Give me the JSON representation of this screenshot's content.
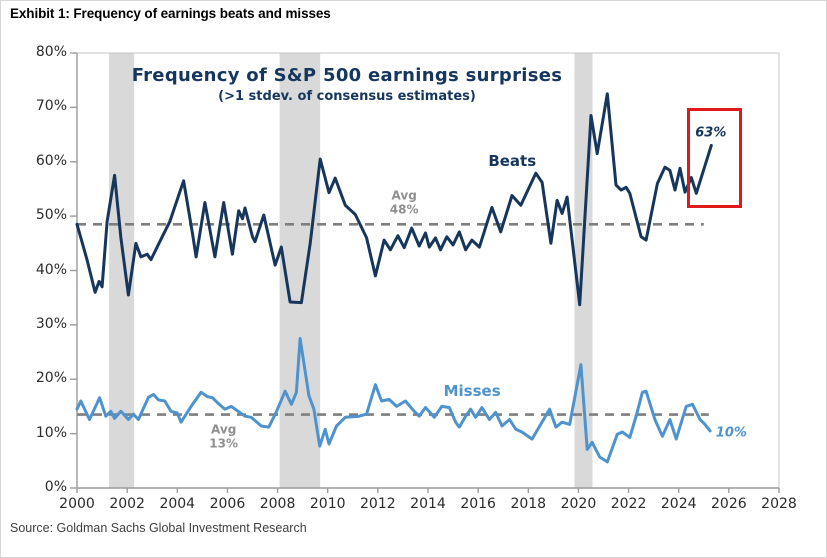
{
  "exhibit_title": "Exhibit 1: Frequency of earnings beats and misses",
  "source": "Source: Goldman Sachs Global Investment Research",
  "colors": {
    "beats": "#16365c",
    "misses": "#4f93ce",
    "recession_band": "#d9d9d9",
    "avg_dash": "#7f7f7f",
    "avg_label": "#8f8f8f",
    "axis": "#9b9b9b",
    "tick_text": "#2b2b2b",
    "highlight_red": "#e01a1a"
  },
  "chart_data": {
    "type": "line",
    "title": "Frequency of S&P 500 earnings surprises",
    "subtitle": "(>1 stdev. of consensus estimates)",
    "xlabel": "",
    "ylabel": "",
    "xlim": [
      2000,
      2028
    ],
    "ylim": [
      0,
      80
    ],
    "grid": false,
    "legend_position": "inline-labels",
    "x_ticks": [
      2000,
      2002,
      2004,
      2006,
      2008,
      2010,
      2012,
      2014,
      2016,
      2018,
      2020,
      2022,
      2024,
      2026,
      2028
    ],
    "y_tick_labels": [
      "0%",
      "10%",
      "20%",
      "30%",
      "40%",
      "50%",
      "60%",
      "70%",
      "80%"
    ],
    "y_tick_values": [
      0,
      10,
      20,
      30,
      40,
      50,
      60,
      70,
      80
    ],
    "recession_bands": [
      {
        "from": 2001.28,
        "to": 2002.28
      },
      {
        "from": 2008.08,
        "to": 2009.7
      },
      {
        "from": 2019.84,
        "to": 2020.56
      }
    ],
    "avg_lines": [
      {
        "name": "beats-average",
        "value": 48.5,
        "x_start": 2000,
        "x_end": 2025.0
      },
      {
        "name": "misses-average",
        "value": 13.5,
        "x_start": 2000,
        "x_end": 2025.2
      }
    ],
    "series": [
      {
        "name": "Beats",
        "color": "#16365c",
        "points": [
          [
            2000.0,
            48.5
          ],
          [
            2000.4,
            42
          ],
          [
            2000.72,
            36
          ],
          [
            2000.88,
            38
          ],
          [
            2001.0,
            37
          ],
          [
            2001.2,
            49
          ],
          [
            2001.5,
            57.5
          ],
          [
            2001.75,
            46
          ],
          [
            2002.05,
            35.5
          ],
          [
            2002.35,
            45
          ],
          [
            2002.55,
            42.5
          ],
          [
            2002.8,
            43
          ],
          [
            2002.95,
            42
          ],
          [
            2003.4,
            46.2
          ],
          [
            2003.7,
            49
          ],
          [
            2004.25,
            56.5
          ],
          [
            2004.6,
            47
          ],
          [
            2004.75,
            42.5
          ],
          [
            2005.1,
            52.5
          ],
          [
            2005.5,
            42.5
          ],
          [
            2005.85,
            52.5
          ],
          [
            2006.2,
            43
          ],
          [
            2006.45,
            51
          ],
          [
            2006.6,
            49.5
          ],
          [
            2006.7,
            51.5
          ],
          [
            2007.0,
            46.2
          ],
          [
            2007.1,
            45.3
          ],
          [
            2007.45,
            50.2
          ],
          [
            2007.9,
            41
          ],
          [
            2008.15,
            44.3
          ],
          [
            2008.5,
            34.2
          ],
          [
            2008.95,
            34.1
          ],
          [
            2009.3,
            45
          ],
          [
            2009.7,
            60.5
          ],
          [
            2010.05,
            54.3
          ],
          [
            2010.3,
            57
          ],
          [
            2010.7,
            52
          ],
          [
            2011.1,
            50.3
          ],
          [
            2011.55,
            46
          ],
          [
            2011.9,
            39
          ],
          [
            2012.25,
            45.6
          ],
          [
            2012.5,
            43.8
          ],
          [
            2012.8,
            46.4
          ],
          [
            2013.05,
            44.2
          ],
          [
            2013.35,
            47.8
          ],
          [
            2013.65,
            44.5
          ],
          [
            2013.9,
            46.9
          ],
          [
            2014.05,
            44.3
          ],
          [
            2014.3,
            46
          ],
          [
            2014.5,
            43.8
          ],
          [
            2014.75,
            46.2
          ],
          [
            2015.0,
            44.7
          ],
          [
            2015.25,
            47.1
          ],
          [
            2015.5,
            43.8
          ],
          [
            2015.75,
            45.6
          ],
          [
            2016.05,
            44.3
          ],
          [
            2016.55,
            51.6
          ],
          [
            2016.9,
            47.1
          ],
          [
            2017.35,
            53.8
          ],
          [
            2017.7,
            52
          ],
          [
            2018.3,
            57.9
          ],
          [
            2018.55,
            56.2
          ],
          [
            2018.9,
            45
          ],
          [
            2019.15,
            52.9
          ],
          [
            2019.35,
            50.5
          ],
          [
            2019.55,
            53.5
          ],
          [
            2020.05,
            33.7
          ],
          [
            2020.5,
            68.5
          ],
          [
            2020.75,
            61.5
          ],
          [
            2021.15,
            72.5
          ],
          [
            2021.5,
            55.7
          ],
          [
            2021.7,
            54.8
          ],
          [
            2021.9,
            55.3
          ],
          [
            2022.05,
            54.2
          ],
          [
            2022.5,
            46.2
          ],
          [
            2022.7,
            45.6
          ],
          [
            2023.15,
            56
          ],
          [
            2023.45,
            59
          ],
          [
            2023.65,
            58.4
          ],
          [
            2023.85,
            54.8
          ],
          [
            2024.05,
            58.8
          ],
          [
            2024.25,
            54.4
          ],
          [
            2024.5,
            57.1
          ],
          [
            2024.7,
            54.2
          ],
          [
            2025.3,
            63
          ]
        ]
      },
      {
        "name": "Misses",
        "color": "#4f93ce",
        "points": [
          [
            2000.0,
            14.5
          ],
          [
            2000.15,
            16
          ],
          [
            2000.5,
            12.6
          ],
          [
            2000.9,
            16.6
          ],
          [
            2001.15,
            13.2
          ],
          [
            2001.35,
            14.1
          ],
          [
            2001.5,
            12.8
          ],
          [
            2001.75,
            14.1
          ],
          [
            2002.05,
            12.6
          ],
          [
            2002.25,
            13.6
          ],
          [
            2002.45,
            12.6
          ],
          [
            2002.85,
            16.7
          ],
          [
            2003.05,
            17.2
          ],
          [
            2003.25,
            16.2
          ],
          [
            2003.5,
            16
          ],
          [
            2003.75,
            14.1
          ],
          [
            2004.0,
            13.8
          ],
          [
            2004.15,
            12.1
          ],
          [
            2004.55,
            15
          ],
          [
            2004.95,
            17.6
          ],
          [
            2005.2,
            16.8
          ],
          [
            2005.4,
            16.6
          ],
          [
            2005.6,
            15.7
          ],
          [
            2005.9,
            14.5
          ],
          [
            2006.15,
            15
          ],
          [
            2006.7,
            13.2
          ],
          [
            2006.95,
            13
          ],
          [
            2007.35,
            11.4
          ],
          [
            2007.65,
            11.2
          ],
          [
            2007.95,
            14
          ],
          [
            2008.3,
            17.8
          ],
          [
            2008.55,
            15.4
          ],
          [
            2008.75,
            17.6
          ],
          [
            2008.9,
            27.5
          ],
          [
            2009.25,
            17
          ],
          [
            2009.45,
            14.5
          ],
          [
            2009.68,
            7.7
          ],
          [
            2009.9,
            10.8
          ],
          [
            2010.05,
            8.1
          ],
          [
            2010.35,
            11.4
          ],
          [
            2010.7,
            13
          ],
          [
            2011.25,
            13.2
          ],
          [
            2011.55,
            13.6
          ],
          [
            2011.9,
            19
          ],
          [
            2012.15,
            16
          ],
          [
            2012.45,
            16.3
          ],
          [
            2012.75,
            15
          ],
          [
            2013.1,
            16
          ],
          [
            2013.45,
            14.1
          ],
          [
            2013.65,
            13.2
          ],
          [
            2013.9,
            14.8
          ],
          [
            2014.25,
            13
          ],
          [
            2014.55,
            15
          ],
          [
            2014.85,
            14.8
          ],
          [
            2015.1,
            12.1
          ],
          [
            2015.25,
            11.2
          ],
          [
            2015.5,
            13.2
          ],
          [
            2015.7,
            14.5
          ],
          [
            2015.9,
            13
          ],
          [
            2016.15,
            14.8
          ],
          [
            2016.45,
            12.6
          ],
          [
            2016.7,
            13.9
          ],
          [
            2016.95,
            11.4
          ],
          [
            2017.25,
            12.6
          ],
          [
            2017.5,
            10.8
          ],
          [
            2017.75,
            10.3
          ],
          [
            2018.15,
            9
          ],
          [
            2018.85,
            14.5
          ],
          [
            2019.1,
            11.2
          ],
          [
            2019.35,
            12.1
          ],
          [
            2019.65,
            11.7
          ],
          [
            2020.1,
            22.7
          ],
          [
            2020.35,
            7.1
          ],
          [
            2020.55,
            8.4
          ],
          [
            2020.85,
            5.7
          ],
          [
            2021.15,
            4.8
          ],
          [
            2021.55,
            9.9
          ],
          [
            2021.75,
            10.3
          ],
          [
            2022.05,
            9.3
          ],
          [
            2022.3,
            13.2
          ],
          [
            2022.55,
            17.6
          ],
          [
            2022.7,
            17.8
          ],
          [
            2023.05,
            12.6
          ],
          [
            2023.35,
            9.5
          ],
          [
            2023.65,
            12.6
          ],
          [
            2023.9,
            9
          ],
          [
            2024.3,
            15
          ],
          [
            2024.55,
            15.4
          ],
          [
            2024.85,
            12.6
          ],
          [
            2025.05,
            11.7
          ],
          [
            2025.25,
            10.5
          ]
        ]
      }
    ],
    "annotations": {
      "beats_label": {
        "text": "Beats",
        "x": 2017.36,
        "y": 60.1
      },
      "misses_label": {
        "text": "Misses",
        "x": 2015.76,
        "y": 17.8
      },
      "avg_beats": {
        "line1": "Avg",
        "line2": "48%",
        "x": 2013.05,
        "y": 52.4
      },
      "avg_misses": {
        "line1": "Avg",
        "line2": "13%",
        "x": 2005.85,
        "y": 9.4
      },
      "last_beats": {
        "text": "63%",
        "x": 2025.28,
        "y": 65.3
      },
      "last_misses": {
        "text": "10%",
        "x": 2026.1,
        "y": 10.1
      },
      "highlight_box": {
        "x1": 2024.32,
        "x2": 2026.28,
        "y1": 52.6,
        "y2": 69.8
      }
    }
  }
}
